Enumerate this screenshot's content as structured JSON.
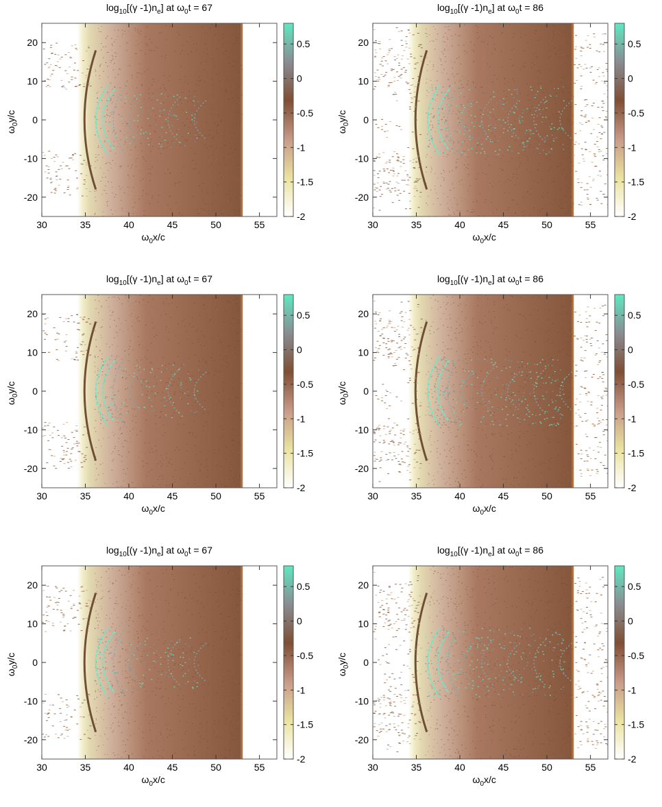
{
  "chart_data": [
    {
      "type": "heatmap",
      "title": "log10[(γ -1)ne] at ω0t = 67",
      "title_parts": {
        "a": "log",
        "b": "10",
        "c": "[(γ -1)n",
        "d": "e",
        "e": "] at ω",
        "f": "0",
        "g": "t = 67"
      },
      "xlabel": "ω0x/c",
      "ylabel": "ω0y/c",
      "xlim": [
        30,
        57
      ],
      "ylim": [
        -25,
        25
      ],
      "clim": [
        -2,
        0.8
      ],
      "xticks": [
        "30",
        "35",
        "40",
        "45",
        "50",
        "55"
      ],
      "yticks": [
        "-20",
        "-10",
        "0",
        "10",
        "20"
      ],
      "cticks": [
        "-2",
        "-1.5",
        "-1",
        "-0.5",
        "0",
        "0.5"
      ],
      "front_x": 53,
      "colormap": [
        "#ffffff",
        "#eae2a0",
        "#c79a88",
        "#7f4f33",
        "#8a8c92",
        "#5fe8c2"
      ]
    },
    {
      "type": "heatmap",
      "title": "log10[(γ -1)ne] at ω0t = 86",
      "title_parts": {
        "a": "log",
        "b": "10",
        "c": "[(γ -1)n",
        "d": "e",
        "e": "] at ω",
        "f": "0",
        "g": "t = 86"
      },
      "xlabel": "ω0x/c",
      "ylabel": "ω0y/c",
      "xlim": [
        30,
        57
      ],
      "ylim": [
        -25,
        25
      ],
      "clim": [
        -2,
        0.8
      ],
      "xticks": [
        "30",
        "35",
        "40",
        "45",
        "50",
        "55"
      ],
      "yticks": [
        "-20",
        "-10",
        "0",
        "10",
        "20"
      ],
      "cticks": [
        "-2",
        "-1.5",
        "-1",
        "-0.5",
        "0",
        "0.5"
      ],
      "front_x": 53,
      "colormap": [
        "#ffffff",
        "#eae2a0",
        "#c79a88",
        "#7f4f33",
        "#8a8c92",
        "#5fe8c2"
      ]
    },
    {
      "type": "heatmap",
      "title": "log10[(γ -1)ne] at ω0t = 67",
      "title_parts": {
        "a": "log",
        "b": "10",
        "c": "[(γ -1)n",
        "d": "e",
        "e": "] at ω",
        "f": "0",
        "g": "t = 67"
      },
      "xlabel": "ω0x/c",
      "ylabel": "ω0y/c",
      "xlim": [
        30,
        57
      ],
      "ylim": [
        -25,
        25
      ],
      "clim": [
        -2,
        0.8
      ],
      "xticks": [
        "30",
        "35",
        "40",
        "45",
        "50",
        "55"
      ],
      "yticks": [
        "-20",
        "-10",
        "0",
        "10",
        "20"
      ],
      "cticks": [
        "-2",
        "-1.5",
        "-1",
        "-0.5",
        "0",
        "0.5"
      ],
      "front_x": 53,
      "colormap": [
        "#ffffff",
        "#eae2a0",
        "#c79a88",
        "#7f4f33",
        "#8a8c92",
        "#5fe8c2"
      ]
    },
    {
      "type": "heatmap",
      "title": "log10[(γ -1)ne] at ω0t = 86",
      "title_parts": {
        "a": "log",
        "b": "10",
        "c": "[(γ -1)n",
        "d": "e",
        "e": "] at ω",
        "f": "0",
        "g": "t = 86"
      },
      "xlabel": "ω0x/c",
      "ylabel": "ω0y/c",
      "xlim": [
        30,
        57
      ],
      "ylim": [
        -25,
        25
      ],
      "clim": [
        -2,
        0.8
      ],
      "xticks": [
        "30",
        "35",
        "40",
        "45",
        "50",
        "55"
      ],
      "yticks": [
        "-20",
        "-10",
        "0",
        "10",
        "20"
      ],
      "cticks": [
        "-2",
        "-1.5",
        "-1",
        "-0.5",
        "0",
        "0.5"
      ],
      "front_x": 53,
      "colormap": [
        "#ffffff",
        "#eae2a0",
        "#c79a88",
        "#7f4f33",
        "#8a8c92",
        "#5fe8c2"
      ]
    },
    {
      "type": "heatmap",
      "title": "log10[(γ -1)ne] at ω0t = 67",
      "title_parts": {
        "a": "log",
        "b": "10",
        "c": "[(γ -1)n",
        "d": "e",
        "e": "] at ω",
        "f": "0",
        "g": "t = 67"
      },
      "xlabel": "ω0x/c",
      "ylabel": "ω0y/c",
      "xlim": [
        30,
        57
      ],
      "ylim": [
        -25,
        25
      ],
      "clim": [
        -2,
        0.8
      ],
      "xticks": [
        "30",
        "35",
        "40",
        "45",
        "50",
        "55"
      ],
      "yticks": [
        "-20",
        "-10",
        "0",
        "10",
        "20"
      ],
      "cticks": [
        "-2",
        "-1.5",
        "-1",
        "-0.5",
        "0",
        "0.5"
      ],
      "front_x": 53,
      "colormap": [
        "#ffffff",
        "#eae2a0",
        "#c79a88",
        "#7f4f33",
        "#8a8c92",
        "#5fe8c2"
      ]
    },
    {
      "type": "heatmap",
      "title": "log10[(γ -1)ne] at ω0t = 86",
      "title_parts": {
        "a": "log",
        "b": "10",
        "c": "[(γ -1)n",
        "d": "e",
        "e": "] at ω",
        "f": "0",
        "g": "t = 86"
      },
      "xlabel": "ω0x/c",
      "ylabel": "ω0y/c",
      "xlim": [
        30,
        57
      ],
      "ylim": [
        -25,
        25
      ],
      "clim": [
        -2,
        0.8
      ],
      "xticks": [
        "30",
        "35",
        "40",
        "45",
        "50",
        "55"
      ],
      "yticks": [
        "-20",
        "-10",
        "0",
        "10",
        "20"
      ],
      "cticks": [
        "-2",
        "-1.5",
        "-1",
        "-0.5",
        "0",
        "0.5"
      ],
      "front_x": 53,
      "colormap": [
        "#ffffff",
        "#eae2a0",
        "#c79a88",
        "#7f4f33",
        "#8a8c92",
        "#5fe8c2"
      ]
    }
  ],
  "labels": {
    "x": {
      "a": "ω",
      "b": "0",
      "c": "x/c"
    },
    "y": {
      "a": "ω",
      "b": "0",
      "c": "y/c"
    }
  }
}
